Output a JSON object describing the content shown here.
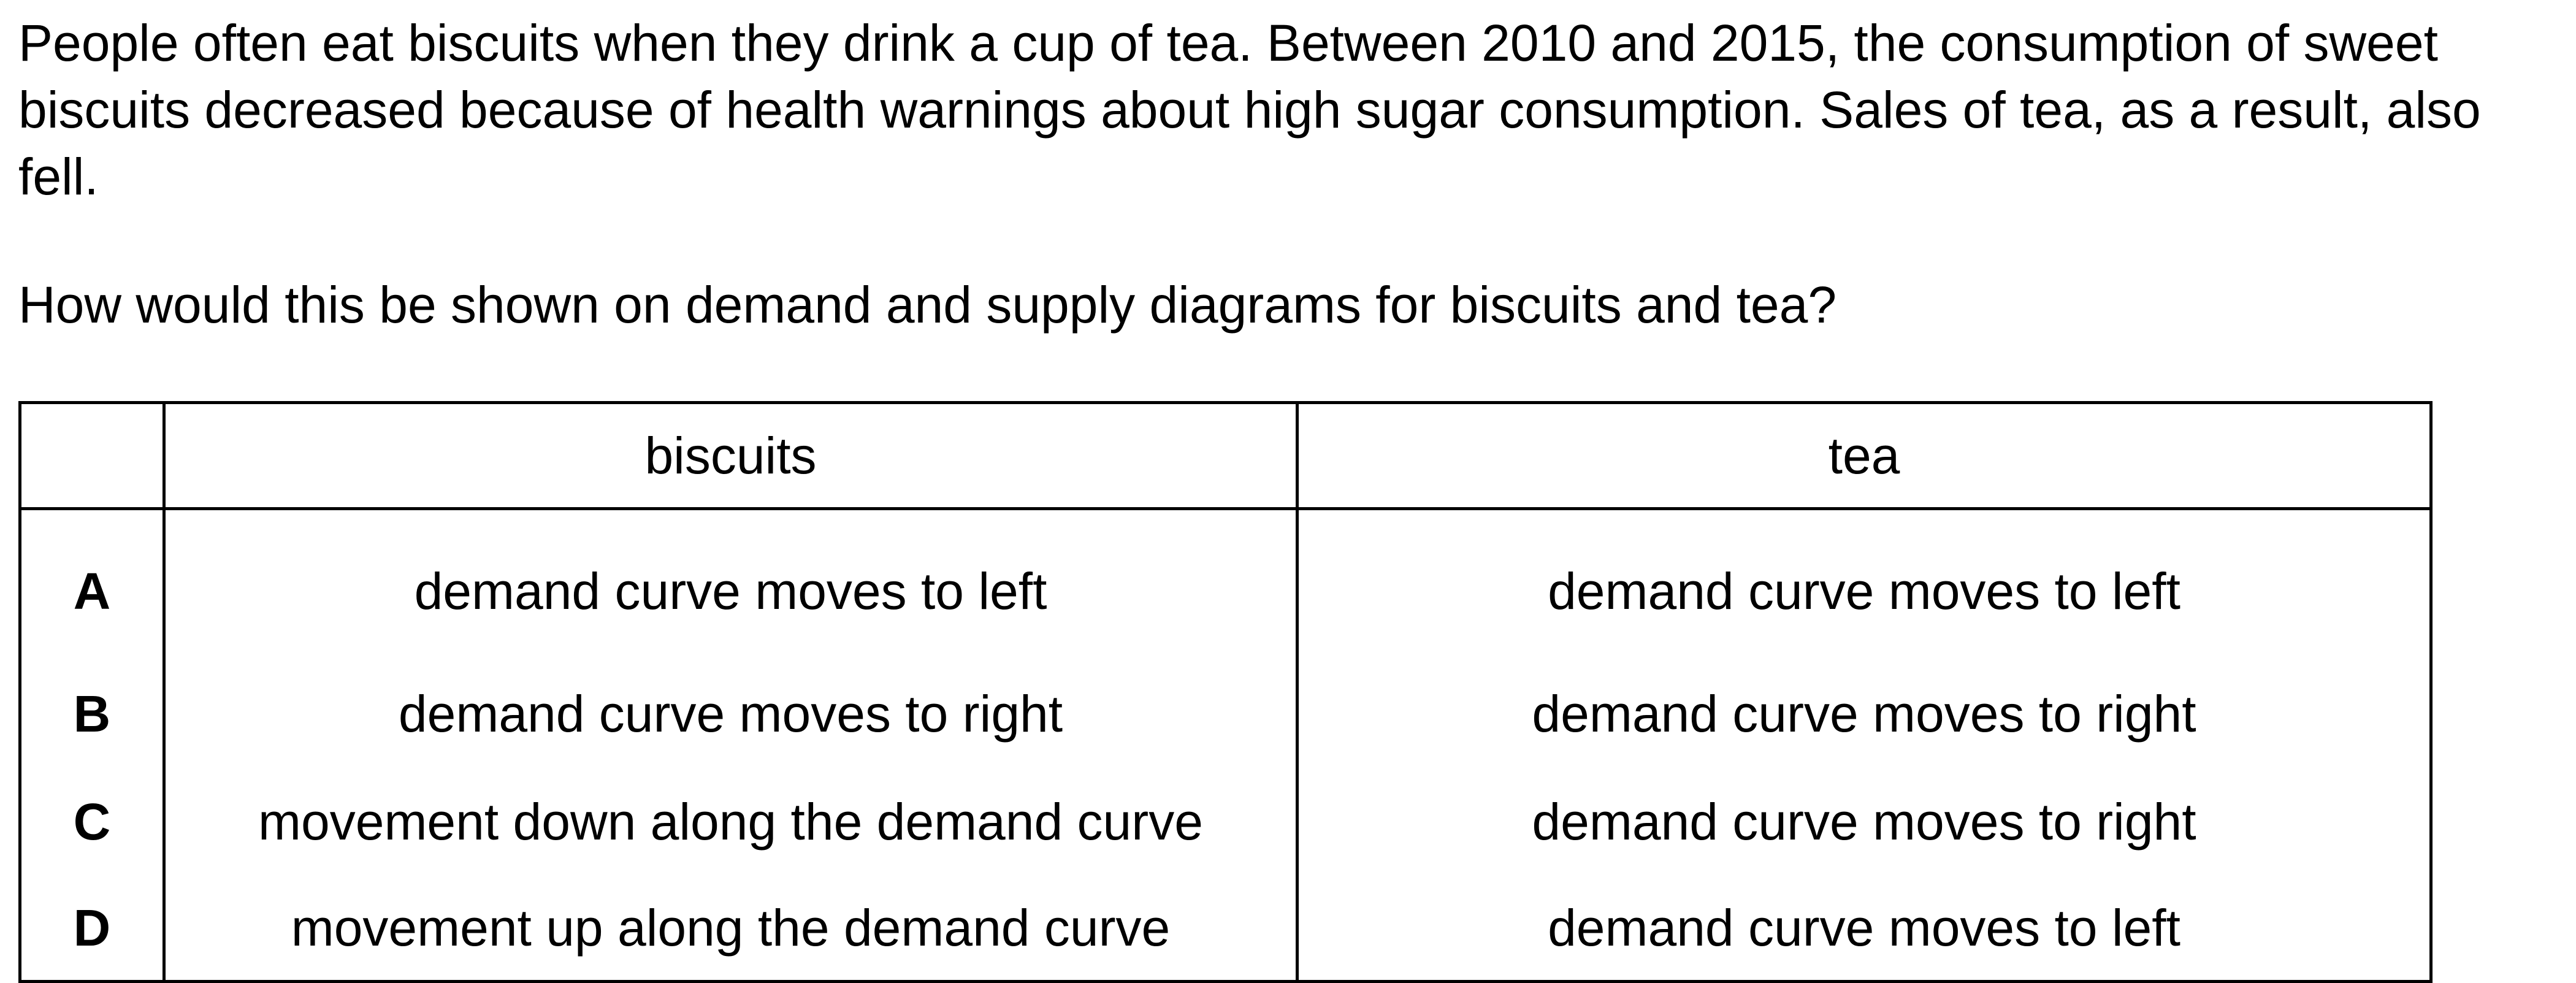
{
  "passage": "People often eat biscuits when they drink a cup of tea. Between 2010 and 2015, the consumption of sweet biscuits decreased because of health warnings about high sugar consumption. Sales of tea, as a result, also fell.",
  "question": "How would this be shown on demand and supply diagrams for biscuits and tea?",
  "table": {
    "headers": [
      "",
      "biscuits",
      "tea"
    ],
    "rows": [
      {
        "key": "A",
        "biscuits": "demand curve moves to left",
        "tea": "demand curve moves to left"
      },
      {
        "key": "B",
        "biscuits": "demand curve moves to right",
        "tea": "demand curve moves to right"
      },
      {
        "key": "C",
        "biscuits": "movement down along the demand curve",
        "tea": "demand curve moves to right"
      },
      {
        "key": "D",
        "biscuits": "movement up along the demand curve",
        "tea": "demand curve moves to left"
      }
    ]
  }
}
